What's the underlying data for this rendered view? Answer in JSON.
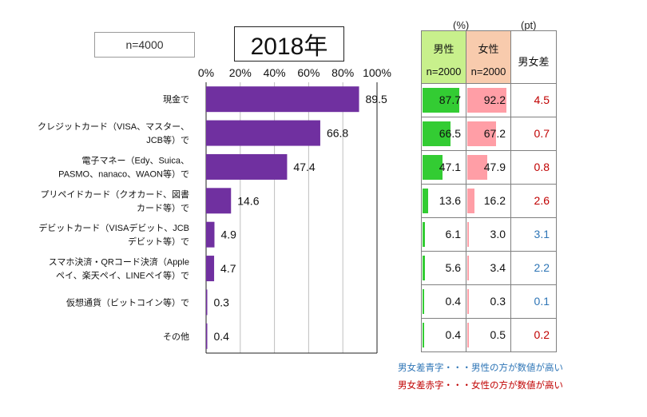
{
  "sample_label": "n=4000",
  "year_label": "2018年",
  "units": {
    "pct": "(%)",
    "pt": "(pt)"
  },
  "table_headers": {
    "male": "男性",
    "female": "女性",
    "diff": "男女差",
    "male_n": "n=2000",
    "female_n": "n=2000"
  },
  "colors": {
    "bar": "#7030a0",
    "male": "#33cc33",
    "female": "#ff9ea6",
    "diff_blue": "#2e75b6",
    "diff_red": "#c00000"
  },
  "legend": {
    "blue": "男女差青字・・・男性の方が数値が高い",
    "red": "男女差赤字・・・女性の方が数値が高い"
  },
  "chart_data": {
    "type": "bar",
    "orientation": "horizontal",
    "title": "2018年",
    "xlim": [
      0,
      100
    ],
    "xticks": [
      "0%",
      "20%",
      "40%",
      "60%",
      "80%",
      "100%"
    ],
    "categories": [
      [
        "現金で"
      ],
      [
        "クレジットカード（VISA、マスター、",
        "JCB等）で"
      ],
      [
        "電子マネー（Edy、Suica、",
        "PASMO、nanaco、WAON等）で"
      ],
      [
        "プリペイドカード（クオカード、図書",
        "カード等）で"
      ],
      [
        "デビットカード（VISAデビット、JCB",
        "デビット等）で"
      ],
      [
        "スマホ決済・QRコード決済（Apple",
        "ペイ、楽天ペイ、LINEペイ等）で"
      ],
      [
        "仮想通貨（ビットコイン等）で"
      ],
      [
        "その他"
      ]
    ],
    "values": [
      89.5,
      66.8,
      47.4,
      14.6,
      4.9,
      4.7,
      0.3,
      0.4
    ],
    "male": [
      87.7,
      66.5,
      47.1,
      13.6,
      6.1,
      5.6,
      0.4,
      0.4
    ],
    "female": [
      92.2,
      67.2,
      47.9,
      16.2,
      3.0,
      3.4,
      0.3,
      0.5
    ],
    "diff": [
      4.5,
      0.7,
      0.8,
      2.6,
      3.1,
      2.2,
      0.1,
      0.2
    ],
    "diff_color": [
      "red",
      "red",
      "red",
      "red",
      "blue",
      "blue",
      "blue",
      "red"
    ]
  }
}
